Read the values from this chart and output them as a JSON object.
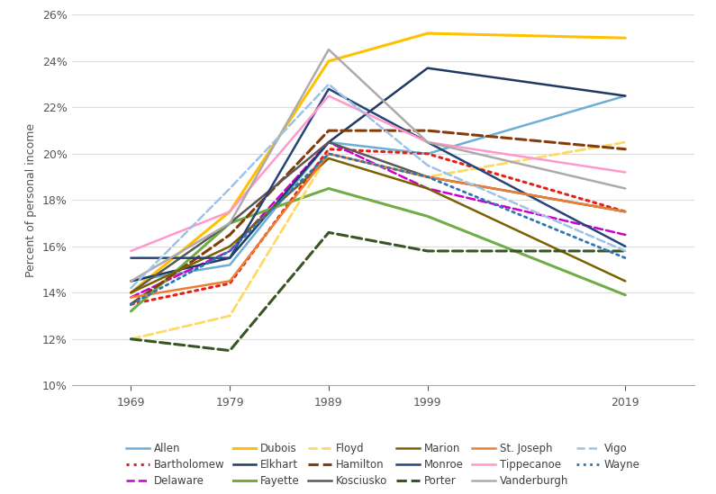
{
  "years": [
    1969,
    1979,
    1989,
    1999,
    2019
  ],
  "series": [
    {
      "name": "Allen",
      "color": "#6BAED6",
      "linestyle": "solid",
      "linewidth": 1.8,
      "values": [
        14.5,
        15.2,
        20.5,
        20.0,
        22.5
      ]
    },
    {
      "name": "Bartholomew",
      "color": "#E32119",
      "linestyle": "dotted",
      "linewidth": 2.2,
      "values": [
        13.5,
        14.4,
        20.2,
        20.0,
        17.5
      ]
    },
    {
      "name": "Delaware",
      "color": "#CC00CC",
      "linestyle": "dashed",
      "linewidth": 1.8,
      "values": [
        13.8,
        15.8,
        20.5,
        18.5,
        16.5
      ]
    },
    {
      "name": "Dubois",
      "color": "#FFC000",
      "linestyle": "solid",
      "linewidth": 2.2,
      "values": [
        14.0,
        17.5,
        24.0,
        25.2,
        25.0
      ]
    },
    {
      "name": "Elkhart",
      "color": "#1F3864",
      "linestyle": "solid",
      "linewidth": 1.8,
      "values": [
        14.5,
        15.5,
        20.5,
        23.7,
        22.5
      ]
    },
    {
      "name": "Fayette",
      "color": "#70AD47",
      "linestyle": "solid",
      "linewidth": 2.2,
      "values": [
        13.2,
        17.0,
        18.5,
        17.3,
        13.9
      ]
    },
    {
      "name": "Floyd",
      "color": "#FFD966",
      "linestyle": "dashed",
      "linewidth": 2.0,
      "values": [
        12.0,
        13.0,
        20.0,
        19.0,
        20.5
      ]
    },
    {
      "name": "Hamilton",
      "color": "#843C0C",
      "linestyle": "dashed",
      "linewidth": 2.2,
      "values": [
        13.5,
        16.5,
        21.0,
        21.0,
        20.2
      ]
    },
    {
      "name": "Kosciusko",
      "color": "#595959",
      "linestyle": "solid",
      "linewidth": 1.8,
      "values": [
        14.0,
        17.0,
        20.5,
        19.0,
        17.5
      ]
    },
    {
      "name": "Marion",
      "color": "#7B6000",
      "linestyle": "solid",
      "linewidth": 1.8,
      "values": [
        14.0,
        16.0,
        19.8,
        18.5,
        14.5
      ]
    },
    {
      "name": "Monroe",
      "color": "#264478",
      "linestyle": "solid",
      "linewidth": 1.8,
      "values": [
        15.5,
        15.5,
        22.8,
        20.5,
        16.0
      ]
    },
    {
      "name": "Porter",
      "color": "#375623",
      "linestyle": "dashed",
      "linewidth": 2.2,
      "values": [
        12.0,
        11.5,
        16.6,
        15.8,
        15.8
      ]
    },
    {
      "name": "St. Joseph",
      "color": "#ED7D31",
      "linestyle": "solid",
      "linewidth": 1.8,
      "values": [
        13.8,
        14.5,
        20.0,
        19.0,
        17.5
      ]
    },
    {
      "name": "Tippecanoe",
      "color": "#FF99CC",
      "linestyle": "solid",
      "linewidth": 1.8,
      "values": [
        15.8,
        17.5,
        22.5,
        20.5,
        19.2
      ]
    },
    {
      "name": "Vanderburgh",
      "color": "#AEAAAA",
      "linestyle": "solid",
      "linewidth": 1.8,
      "values": [
        14.5,
        17.0,
        24.5,
        20.5,
        18.5
      ]
    },
    {
      "name": "Vigo",
      "color": "#9DC3E6",
      "linestyle": "dashed",
      "linewidth": 1.8,
      "values": [
        14.2,
        18.5,
        23.0,
        19.5,
        15.8
      ]
    },
    {
      "name": "Wayne",
      "color": "#2E75B6",
      "linestyle": "dotted",
      "linewidth": 2.0,
      "values": [
        13.5,
        15.8,
        20.0,
        19.0,
        15.5
      ]
    }
  ],
  "legend_order": [
    "Allen",
    "Bartholomew",
    "Delaware",
    "Dubois",
    "Elkhart",
    "Fayette",
    "Floyd",
    "Hamilton",
    "Kosciusko",
    "Marion",
    "Monroe",
    "Porter",
    "St. Joseph",
    "Tippecanoe",
    "Vanderburgh",
    "Vigo",
    "Wayne"
  ],
  "ylabel": "Percent of personal income",
  "ylim": [
    10,
    26
  ],
  "yticks": [
    10,
    12,
    14,
    16,
    18,
    20,
    22,
    24,
    26
  ],
  "xticks": [
    1969,
    1979,
    1989,
    1999,
    2019
  ],
  "xlim": [
    1963,
    2026
  ],
  "background_color": "#FFFFFF"
}
